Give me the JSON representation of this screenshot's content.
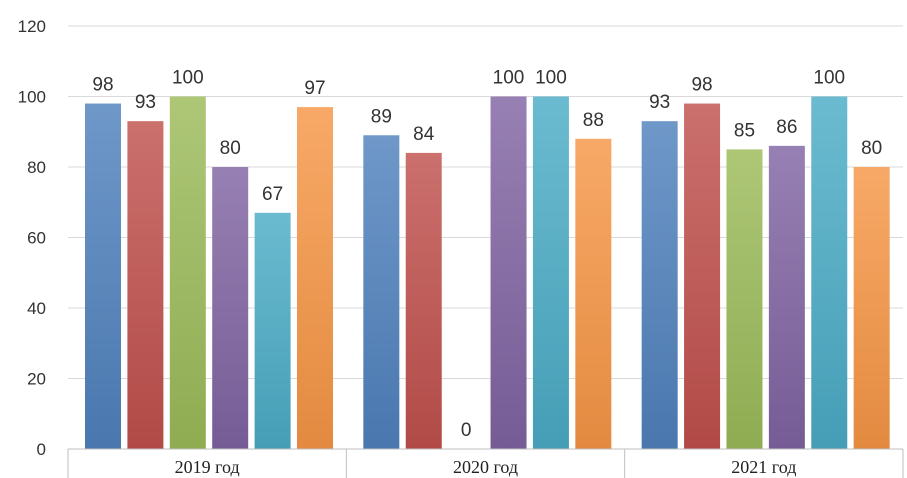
{
  "chart_data": {
    "type": "bar",
    "categories": [
      "2019 год",
      "2020 год",
      "2021 год"
    ],
    "ylim": [
      0,
      120
    ],
    "yticks": [
      0,
      20,
      40,
      60,
      80,
      100,
      120
    ],
    "grid": true,
    "legend": "none",
    "series": [
      {
        "values": [
          98,
          89,
          93
        ],
        "color": "#4F81BD"
      },
      {
        "values": [
          93,
          84,
          98
        ],
        "color": "#C0504D"
      },
      {
        "values": [
          100,
          0,
          85
        ],
        "color": "#9BBB59"
      },
      {
        "values": [
          80,
          100,
          86
        ],
        "color": "#8064A2"
      },
      {
        "values": [
          67,
          100,
          100
        ],
        "color": "#4BACC6"
      },
      {
        "values": [
          97,
          88,
          80
        ],
        "color": "#F79646"
      }
    ]
  }
}
